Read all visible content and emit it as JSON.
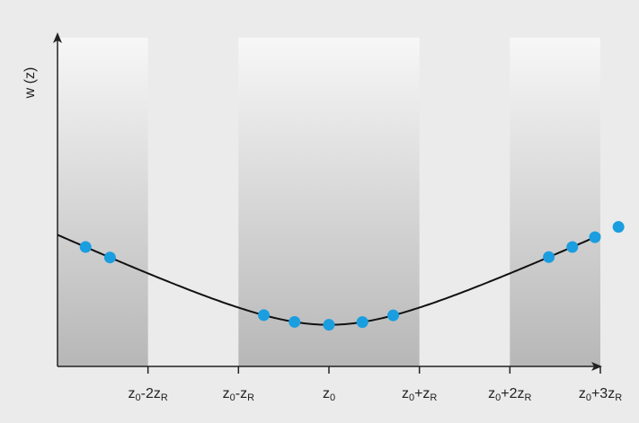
{
  "chart_data": {
    "type": "line",
    "title": "",
    "ylabel": "w (z)",
    "xlabel": "",
    "xlim": [
      -3.0,
      3.0
    ],
    "ylim": [
      0,
      3.16
    ],
    "ticks": [
      {
        "value": -2,
        "base": "z",
        "sub1": "0",
        "mid": "-2z",
        "sub2": "R"
      },
      {
        "value": -1,
        "base": "z",
        "sub1": "0",
        "mid": "-z",
        "sub2": "R"
      },
      {
        "value": 0,
        "base": "z",
        "sub1": "0",
        "mid": "",
        "sub2": ""
      },
      {
        "value": 1,
        "base": "z",
        "sub1": "0",
        "mid": "+z",
        "sub2": "R"
      },
      {
        "value": 2,
        "base": "z",
        "sub1": "0",
        "mid": "+2z",
        "sub2": "R"
      },
      {
        "value": 3,
        "base": "z",
        "sub1": "0",
        "mid": "+3z",
        "sub2": "R"
      }
    ],
    "bands": [
      [
        -3.0,
        -2.0
      ],
      [
        -1.0,
        1.0
      ],
      [
        2.0,
        3.0
      ]
    ],
    "curve": {
      "formula": "w0*sqrt(1+z^2)",
      "w0": 0.4
    },
    "points": [
      {
        "x": -2.69,
        "y": 1.15
      },
      {
        "x": -2.42,
        "y": 1.0
      },
      {
        "x": -0.72,
        "y": 0.49
      },
      {
        "x": -0.38,
        "y": 0.43
      },
      {
        "x": 0.0,
        "y": 0.4
      },
      {
        "x": 0.37,
        "y": 0.42
      },
      {
        "x": 0.71,
        "y": 0.5
      },
      {
        "x": 2.43,
        "y": 1.0
      },
      {
        "x": 2.69,
        "y": 1.15
      },
      {
        "x": 2.94,
        "y": 1.25
      },
      {
        "x": 3.2,
        "y": 1.38
      }
    ],
    "colors": {
      "curve": "#111111",
      "point": "#1a9ee0",
      "band_dark": "#b7b7b7",
      "band_light": "#f7f7f7",
      "axis": "#222222"
    }
  }
}
